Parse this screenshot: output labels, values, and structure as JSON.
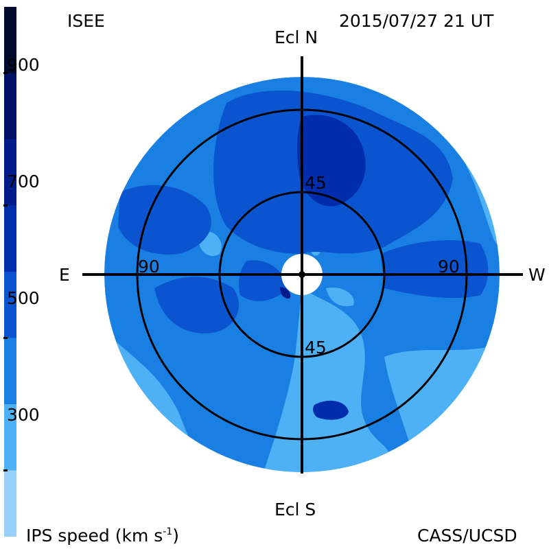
{
  "header": {
    "org": "ISEE",
    "timestamp": "2015/07/27 21 UT"
  },
  "footer": {
    "quantity_prefix": "IPS speed (km s",
    "quantity_exp": "-1",
    "quantity_suffix": ")",
    "credit": "CASS/UCSD"
  },
  "colorbar": {
    "tick_labels": [
      "900",
      "700",
      "500",
      "300"
    ],
    "tick_values": [
      900,
      700,
      500,
      300
    ],
    "range": [
      200,
      1000
    ],
    "bands": [
      {
        "from": 200,
        "to": 300,
        "color": "#99d0fa"
      },
      {
        "from": 300,
        "to": 400,
        "color": "#4eb0f5"
      },
      {
        "from": 400,
        "to": 500,
        "color": "#1a7fe2"
      },
      {
        "from": 500,
        "to": 600,
        "color": "#0a55cf"
      },
      {
        "from": 600,
        "to": 700,
        "color": "#002dac"
      },
      {
        "from": 700,
        "to": 800,
        "color": "#001c8a"
      },
      {
        "from": 800,
        "to": 900,
        "color": "#001266"
      },
      {
        "from": 900,
        "to": 1000,
        "color": "#000a2e"
      }
    ]
  },
  "map": {
    "directions": {
      "north": "Ecl N",
      "south": "Ecl S",
      "east": "E",
      "west": "W"
    },
    "ring_labels": {
      "inner_top": "45",
      "inner_bottom": "45",
      "outer_left": "90",
      "outer_right": "90"
    }
  }
}
